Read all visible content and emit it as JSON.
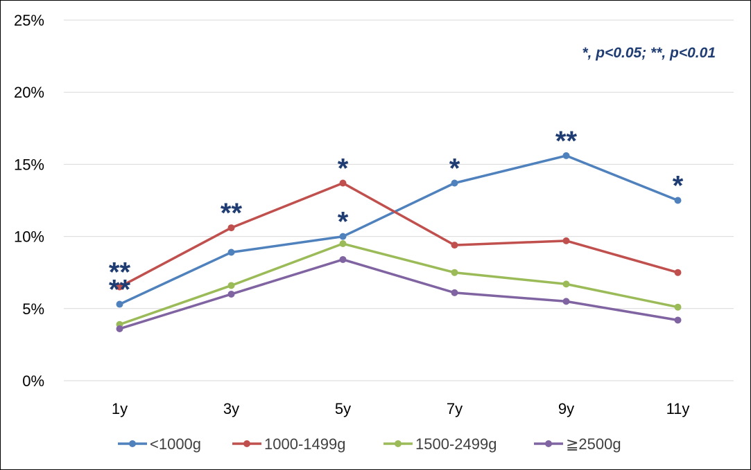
{
  "chart_data": {
    "type": "line",
    "categories": [
      "1y",
      "3y",
      "5y",
      "7y",
      "9y",
      "11y"
    ],
    "y_ticks": [
      "0%",
      "5%",
      "10%",
      "15%",
      "20%",
      "25%"
    ],
    "ylim": [
      0,
      25
    ],
    "grid": true,
    "legend_position": "bottom",
    "series": [
      {
        "name": "<1000g",
        "color": "#4f81bd",
        "values": [
          5.3,
          8.9,
          10.0,
          13.7,
          15.6,
          12.5
        ]
      },
      {
        "name": "1000-1499g",
        "color": "#c0504d",
        "values": [
          6.5,
          10.6,
          13.7,
          9.4,
          9.7,
          7.5
        ]
      },
      {
        "name": "1500-2499g",
        "color": "#9bbb59",
        "values": [
          3.9,
          6.6,
          9.5,
          7.5,
          6.7,
          5.1
        ]
      },
      {
        "name": "≧2500g",
        "color": "#8064a2",
        "values": [
          3.6,
          6.0,
          8.4,
          6.1,
          5.5,
          4.2
        ]
      }
    ],
    "annotation": "*, p<0.05; **, p<0.01",
    "significance_marks": [
      {
        "category": "1y",
        "series": "1000-1499g",
        "mark": "**"
      },
      {
        "category": "1y",
        "series": "<1000g",
        "mark": "**"
      },
      {
        "category": "3y",
        "series": "1000-1499g",
        "mark": "**"
      },
      {
        "category": "5y",
        "series": "1000-1499g",
        "mark": "*"
      },
      {
        "category": "5y",
        "series": "<1000g",
        "mark": "*"
      },
      {
        "category": "7y",
        "series": "<1000g",
        "mark": "*"
      },
      {
        "category": "9y",
        "series": "<1000g",
        "mark": "**"
      },
      {
        "category": "11y",
        "series": "<1000g",
        "mark": "*"
      }
    ]
  }
}
